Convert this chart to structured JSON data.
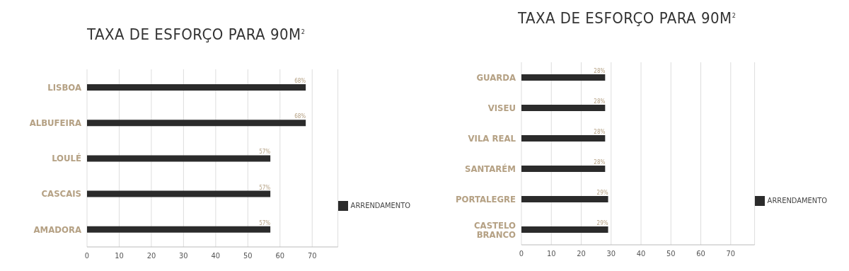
{
  "chart_data": [
    {
      "type": "bar",
      "orientation": "horizontal",
      "title": "TAXA DE ESFORÇO PARA 90M$^{2}$",
      "categories": [
        "LISBOA",
        "ALBUFEIRA",
        "LOULÉ",
        "CASCAIS",
        "AMADORA"
      ],
      "series": [
        {
          "name": "ARRENDAMENTO",
          "color": "#2b2b2b",
          "values": [
            68,
            68,
            57,
            57,
            57
          ],
          "value_labels": [
            "68%",
            "68%",
            "57%",
            "57%",
            "57%"
          ]
        }
      ],
      "xlim": [
        0,
        78
      ],
      "xticks": [
        0,
        10,
        20,
        30,
        40,
        50,
        60,
        70
      ],
      "grid": "x",
      "legend": "right"
    },
    {
      "type": "bar",
      "orientation": "horizontal",
      "title": "TAXA DE ESFORÇO PARA 90M$^{2}$",
      "categories": [
        "GUARDA",
        "VISEU",
        "VILA REAL",
        "SANTARÉM",
        "PORTALEGRE",
        "CASTELO BRANCO"
      ],
      "series": [
        {
          "name": "ARRENDAMENTO",
          "color": "#2b2b2b",
          "values": [
            28,
            28,
            28,
            28,
            29,
            29
          ],
          "value_labels": [
            "28%",
            "28%",
            "28%",
            "28%",
            "29%",
            "29%"
          ]
        }
      ],
      "xlim": [
        0,
        78
      ],
      "xticks": [
        0,
        10,
        20,
        30,
        40,
        50,
        60,
        70
      ],
      "grid": "x",
      "legend": "right"
    }
  ]
}
